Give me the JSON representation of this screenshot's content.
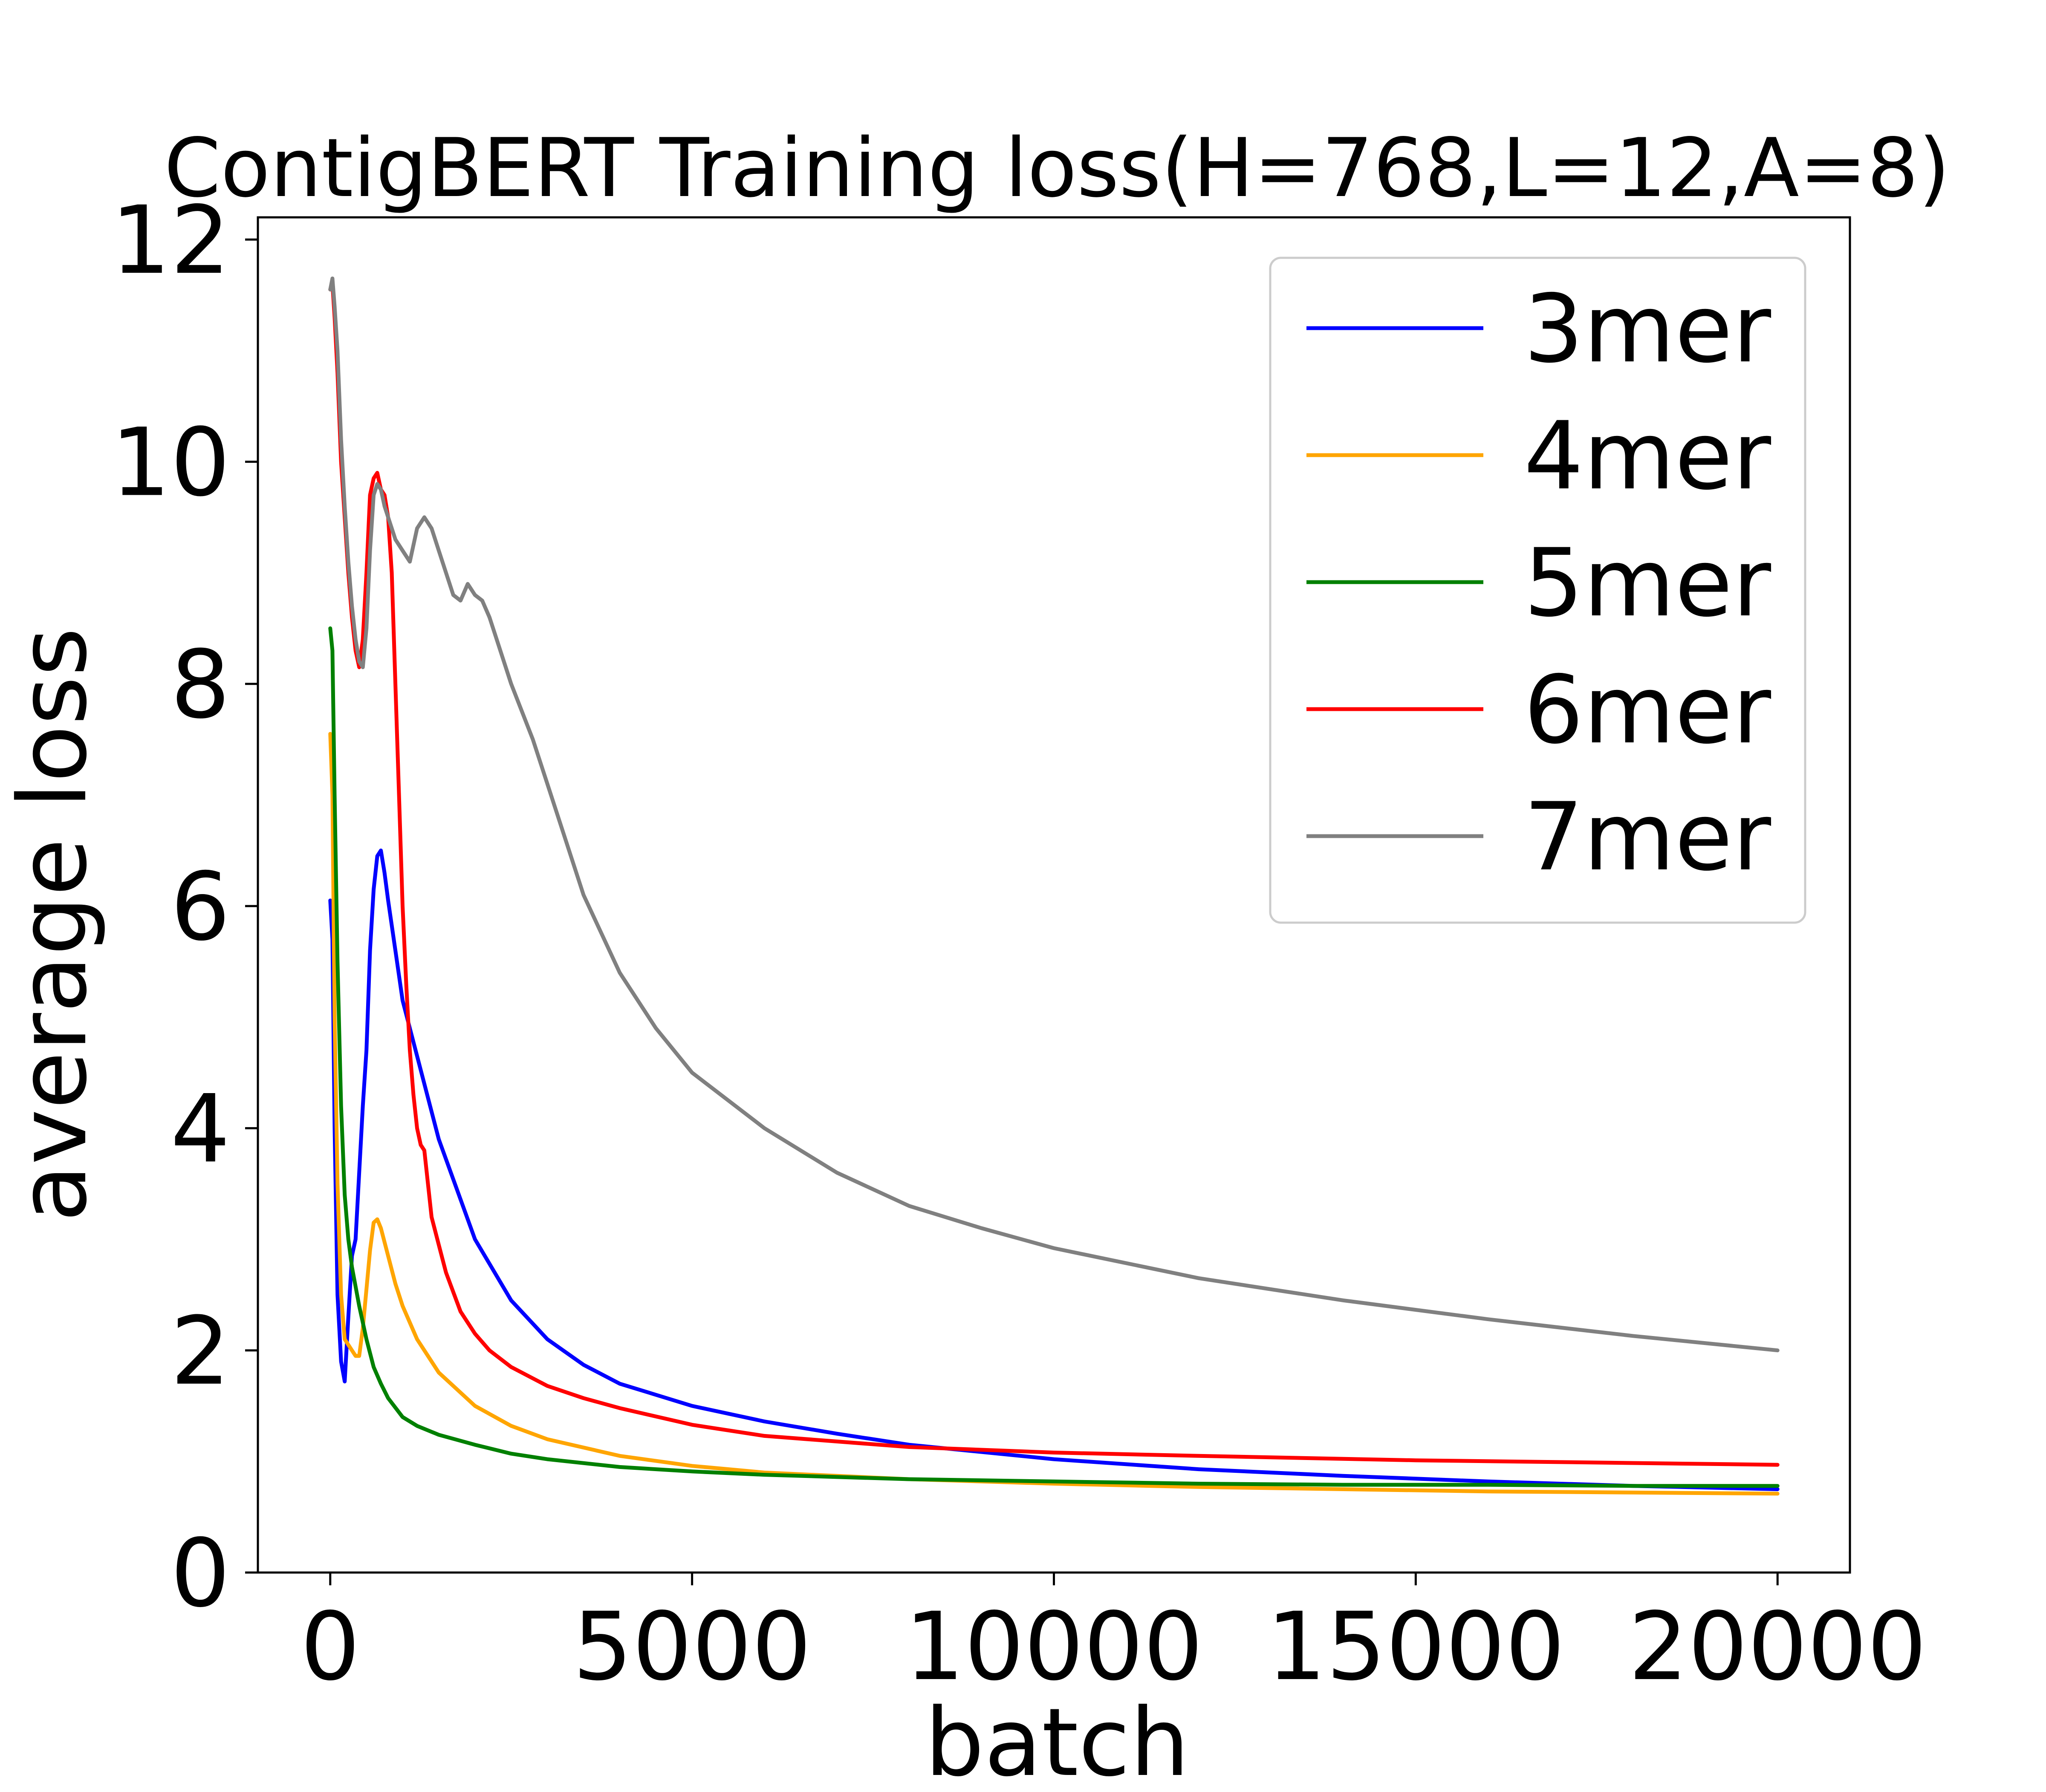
{
  "chart_data": {
    "type": "line",
    "title": "ContigBERT Training loss(H=768,L=12,A=8)",
    "xlabel": "batch",
    "ylabel": "average loss",
    "xlim": [
      -1000,
      21000
    ],
    "ylim": [
      0,
      12.2
    ],
    "xticks": [
      0,
      5000,
      10000,
      15000,
      20000
    ],
    "yticks": [
      0,
      2,
      4,
      6,
      8,
      10,
      12
    ],
    "grid": false,
    "legend_position": "top-right",
    "series": [
      {
        "name": "3mer",
        "color": "#0000ff",
        "x": [
          0,
          30,
          60,
          100,
          150,
          200,
          250,
          300,
          350,
          400,
          450,
          500,
          550,
          600,
          650,
          700,
          750,
          800,
          900,
          1000,
          1200,
          1500,
          2000,
          2500,
          3000,
          3500,
          4000,
          5000,
          6000,
          7000,
          8000,
          10000,
          12000,
          14000,
          16000,
          18000,
          20000
        ],
        "y": [
          6.05,
          5.7,
          4.0,
          2.5,
          1.9,
          1.72,
          2.3,
          2.85,
          3.0,
          3.6,
          4.2,
          4.7,
          5.6,
          6.15,
          6.45,
          6.5,
          6.3,
          6.05,
          5.6,
          5.15,
          4.65,
          3.9,
          3.0,
          2.45,
          2.1,
          1.87,
          1.7,
          1.5,
          1.36,
          1.25,
          1.15,
          1.02,
          0.93,
          0.87,
          0.82,
          0.78,
          0.75
        ]
      },
      {
        "name": "4mer",
        "color": "#ffa500",
        "x": [
          0,
          30,
          60,
          100,
          150,
          200,
          250,
          300,
          350,
          400,
          450,
          500,
          550,
          600,
          650,
          700,
          800,
          900,
          1000,
          1200,
          1500,
          2000,
          2500,
          3000,
          4000,
          5000,
          6000,
          8000,
          10000,
          12000,
          14000,
          16000,
          18000,
          20000
        ],
        "y": [
          7.55,
          7.0,
          5.0,
          3.5,
          2.5,
          2.1,
          2.05,
          2.0,
          1.95,
          1.95,
          2.2,
          2.55,
          2.9,
          3.15,
          3.18,
          3.1,
          2.85,
          2.6,
          2.4,
          2.1,
          1.8,
          1.5,
          1.32,
          1.2,
          1.05,
          0.96,
          0.9,
          0.84,
          0.8,
          0.77,
          0.75,
          0.73,
          0.72,
          0.71
        ]
      },
      {
        "name": "5mer",
        "color": "#008000",
        "x": [
          0,
          30,
          60,
          100,
          150,
          200,
          250,
          300,
          400,
          500,
          600,
          700,
          800,
          1000,
          1200,
          1500,
          2000,
          2500,
          3000,
          4000,
          5000,
          6000,
          8000,
          10000,
          12000,
          14000,
          16000,
          18000,
          20000
        ],
        "y": [
          8.5,
          8.3,
          7.0,
          5.5,
          4.2,
          3.4,
          3.0,
          2.75,
          2.4,
          2.1,
          1.85,
          1.7,
          1.57,
          1.4,
          1.32,
          1.24,
          1.15,
          1.07,
          1.02,
          0.95,
          0.91,
          0.88,
          0.84,
          0.82,
          0.8,
          0.79,
          0.79,
          0.78,
          0.78
        ]
      },
      {
        "name": "6mer",
        "color": "#ff0000",
        "x": [
          0,
          30,
          60,
          100,
          150,
          200,
          250,
          300,
          350,
          400,
          450,
          500,
          550,
          600,
          650,
          700,
          750,
          800,
          850,
          900,
          950,
          1000,
          1050,
          1100,
          1150,
          1200,
          1250,
          1300,
          1400,
          1500,
          1600,
          1800,
          2000,
          2200,
          2500,
          3000,
          3500,
          4000,
          5000,
          6000,
          8000,
          10000,
          12000,
          15000,
          20000
        ],
        "y": [
          11.55,
          11.6,
          11.3,
          10.8,
          10.0,
          9.5,
          9.0,
          8.6,
          8.3,
          8.15,
          8.4,
          9.0,
          9.7,
          9.85,
          9.9,
          9.75,
          9.7,
          9.5,
          9.0,
          8.0,
          7.0,
          6.0,
          5.3,
          4.7,
          4.3,
          4.0,
          3.85,
          3.8,
          3.2,
          2.95,
          2.7,
          2.35,
          2.15,
          2.0,
          1.85,
          1.68,
          1.57,
          1.48,
          1.33,
          1.23,
          1.13,
          1.08,
          1.05,
          1.01,
          0.97
        ]
      },
      {
        "name": "7mer",
        "color": "#808080",
        "x": [
          0,
          30,
          60,
          100,
          150,
          200,
          250,
          300,
          350,
          400,
          450,
          500,
          550,
          600,
          650,
          700,
          750,
          800,
          850,
          900,
          1000,
          1100,
          1200,
          1300,
          1400,
          1500,
          1600,
          1700,
          1800,
          1900,
          2000,
          2100,
          2200,
          2300,
          2500,
          2800,
          3000,
          3500,
          4000,
          4500,
          5000,
          6000,
          7000,
          8000,
          9000,
          10000,
          12000,
          14000,
          16000,
          18000,
          20000
        ],
        "y": [
          11.55,
          11.65,
          11.4,
          11.0,
          10.2,
          9.6,
          9.1,
          8.7,
          8.4,
          8.2,
          8.15,
          8.5,
          9.2,
          9.7,
          9.8,
          9.75,
          9.6,
          9.5,
          9.4,
          9.3,
          9.2,
          9.1,
          9.4,
          9.5,
          9.4,
          9.2,
          9.0,
          8.8,
          8.75,
          8.9,
          8.8,
          8.75,
          8.6,
          8.4,
          8.0,
          7.5,
          7.1,
          6.1,
          5.4,
          4.9,
          4.5,
          4.0,
          3.6,
          3.3,
          3.1,
          2.92,
          2.65,
          2.45,
          2.28,
          2.13,
          2.0
        ]
      }
    ]
  }
}
